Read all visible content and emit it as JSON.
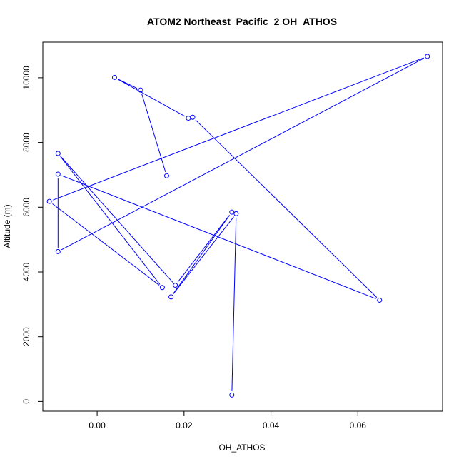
{
  "chart_data": {
    "type": "line",
    "title": "ATOM2 Northeast_Pacific_2 OH_ATHOS",
    "xlabel": "OH_ATHOS",
    "ylabel": "Altitude (m)",
    "xlim": [
      -0.0125,
      0.0795
    ],
    "ylim": [
      -300,
      11100
    ],
    "xticks": [
      0.0,
      0.02,
      0.04,
      0.06
    ],
    "xtick_labels": [
      "0.00",
      "0.02",
      "0.04",
      "0.06"
    ],
    "yticks": [
      0,
      2000,
      4000,
      6000,
      8000,
      10000
    ],
    "ytick_labels": [
      "0",
      "2000",
      "4000",
      "6000",
      "8000",
      "10000"
    ],
    "grid": false,
    "series": [
      {
        "color": "#0000ff",
        "marker": "open-circle",
        "x": [
          0.031,
          0.032,
          0.017,
          0.031,
          0.018,
          -0.009,
          0.015,
          -0.011,
          0.076,
          -0.009,
          -0.009,
          0.065,
          0.022,
          0.021,
          0.004,
          0.01,
          0.016
        ],
        "y": [
          200,
          5800,
          3230,
          5850,
          3590,
          7660,
          3520,
          6180,
          10660,
          4630,
          7020,
          3130,
          8780,
          8750,
          10010,
          9620,
          6970
        ]
      }
    ]
  }
}
